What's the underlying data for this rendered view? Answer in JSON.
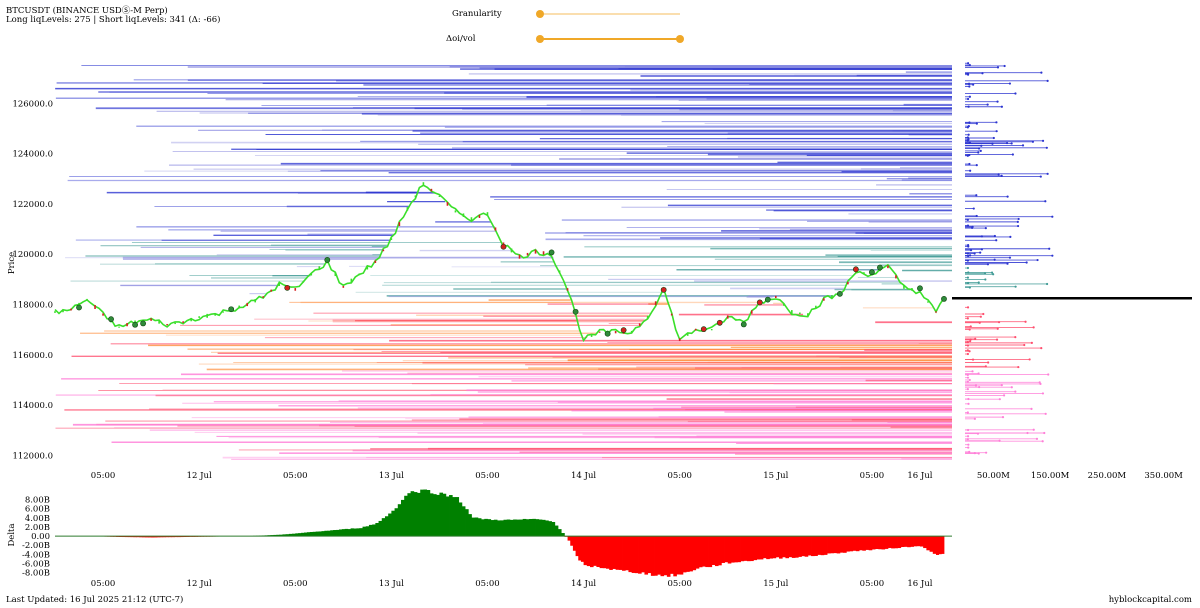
{
  "header": {
    "title": "BTCUSDT (BINANCE USDⓈ-M Perp)",
    "levels": "Long liqLevels: 275 | Short liqLevels: 341 (Δ: -66)"
  },
  "controls": {
    "granularity": {
      "label": "Granularity",
      "value": 0.0
    },
    "oi_vol": {
      "label": "Δoi/vol",
      "range": [
        0.0,
        1.0
      ]
    }
  },
  "colors": {
    "short_liq": "#2b34d0",
    "short_liq_faded": "#8f8fe0",
    "mid_liq": "#3f9a95",
    "long_liq": "#ff4d6d",
    "long_liq_near": "#ff8c3a",
    "long_liq_far": "#ff7fd8",
    "candle_up": "#3adf2a",
    "candle_down": "#d62020",
    "delta_pos": "#008000",
    "delta_neg": "#ff0000",
    "current_price_line": "#000000",
    "slider": "#f0a828"
  },
  "chart_data": [
    {
      "type": "line",
      "name": "price",
      "title": "",
      "xlabel": "",
      "ylabel": "Price",
      "ylim": [
        111500,
        127800
      ],
      "xlim": [
        0,
        112
      ],
      "yticks": [
        112000,
        114000,
        116000,
        118000,
        120000,
        122000,
        124000,
        126000
      ],
      "ytick_labels": [
        "112000.0",
        "114000.0",
        "116000.0",
        "118000.0",
        "120000.0",
        "122000.0",
        "124000.0",
        "126000.0"
      ],
      "xticks": [
        6,
        18,
        30,
        42,
        54,
        66,
        78,
        90,
        102,
        108
      ],
      "xtick_labels": [
        "05:00",
        "12 Jul",
        "05:00",
        "13 Jul",
        "05:00",
        "14 Jul",
        "05:00",
        "15 Jul",
        "05:00",
        "16 Jul"
      ],
      "current_price": 118250,
      "x": [
        0,
        2,
        4,
        6,
        8,
        10,
        12,
        14,
        16,
        18,
        20,
        22,
        24,
        26,
        28,
        30,
        32,
        34,
        36,
        38,
        40,
        42,
        44,
        46,
        48,
        50,
        52,
        54,
        56,
        58,
        60,
        62,
        64,
        66,
        68,
        70,
        72,
        74,
        76,
        78,
        80,
        82,
        84,
        86,
        88,
        90,
        92,
        94,
        96,
        98,
        100,
        102,
        104,
        106,
        108,
        110,
        111
      ],
      "y": [
        117700,
        117800,
        118200,
        117600,
        117100,
        117300,
        117400,
        117200,
        117300,
        117500,
        117600,
        117800,
        118000,
        118300,
        118800,
        118600,
        119200,
        119700,
        118700,
        119200,
        119700,
        120600,
        121800,
        122800,
        122300,
        121700,
        121400,
        121600,
        120400,
        119900,
        120100,
        120000,
        118600,
        116600,
        116900,
        116900,
        116900,
        117500,
        118600,
        116600,
        117000,
        117000,
        117500,
        117300,
        118100,
        118300,
        117700,
        117600,
        118200,
        118400,
        119300,
        119200,
        119500,
        118700,
        118500,
        117700,
        118200
      ]
    },
    {
      "type": "bar",
      "name": "delta",
      "ylabel": "Delta",
      "ylim": [
        -8500000000,
        10500000000
      ],
      "yticks": [
        -8000000000,
        -6000000000,
        -4000000000,
        -2000000000,
        0,
        2000000000,
        4000000000,
        6000000000,
        8000000000
      ],
      "ytick_labels": [
        "-8.00B",
        "-6.00B",
        "-4.00B",
        "-2.00B",
        "0.00",
        "2.00B",
        "4.00B",
        "6.00B",
        "8.00B"
      ],
      "x": [
        0,
        4,
        8,
        12,
        16,
        20,
        24,
        28,
        30,
        34,
        38,
        40,
        42,
        44,
        46,
        48,
        50,
        52,
        54,
        56,
        58,
        60,
        62,
        64,
        65,
        66,
        68,
        70,
        72,
        74,
        76,
        78,
        80,
        82,
        84,
        86,
        88,
        90,
        92,
        94,
        96,
        98,
        100,
        102,
        104,
        106,
        108,
        110,
        111
      ],
      "values": [
        0,
        0,
        -200000000,
        -300000000,
        -200000000,
        -100000000,
        0,
        300000000,
        600000000,
        1200000000,
        1800000000,
        2800000000,
        5500000000,
        9500000000,
        10000000000,
        9200000000,
        8500000000,
        4000000000,
        3600000000,
        3500000000,
        3600000000,
        3700000000,
        3200000000,
        -1000000000,
        -4500000000,
        -6500000000,
        -6800000000,
        -7500000000,
        -7800000000,
        -8300000000,
        -8700000000,
        -8400000000,
        -7000000000,
        -6500000000,
        -5800000000,
        -5500000000,
        -5000000000,
        -4800000000,
        -4600000000,
        -4400000000,
        -4000000000,
        -3600000000,
        -3200000000,
        -3000000000,
        -2700000000,
        -2400000000,
        -2200000000,
        -4200000000,
        -3800000000
      ]
    },
    {
      "type": "bar",
      "name": "liquidation-volume-profile",
      "orientation": "horizontal",
      "xlim": [
        0,
        400
      ],
      "xticks": [
        50,
        150,
        250,
        350
      ],
      "xtick_labels": [
        "50.00M",
        "150.00M",
        "250.00M",
        "350.00M"
      ],
      "x_units": "M"
    }
  ],
  "footer": {
    "last_updated": "Last Updated: 16 Jul 2025 21:12 (UTC-7)",
    "site": "hyblockcapital.com"
  }
}
